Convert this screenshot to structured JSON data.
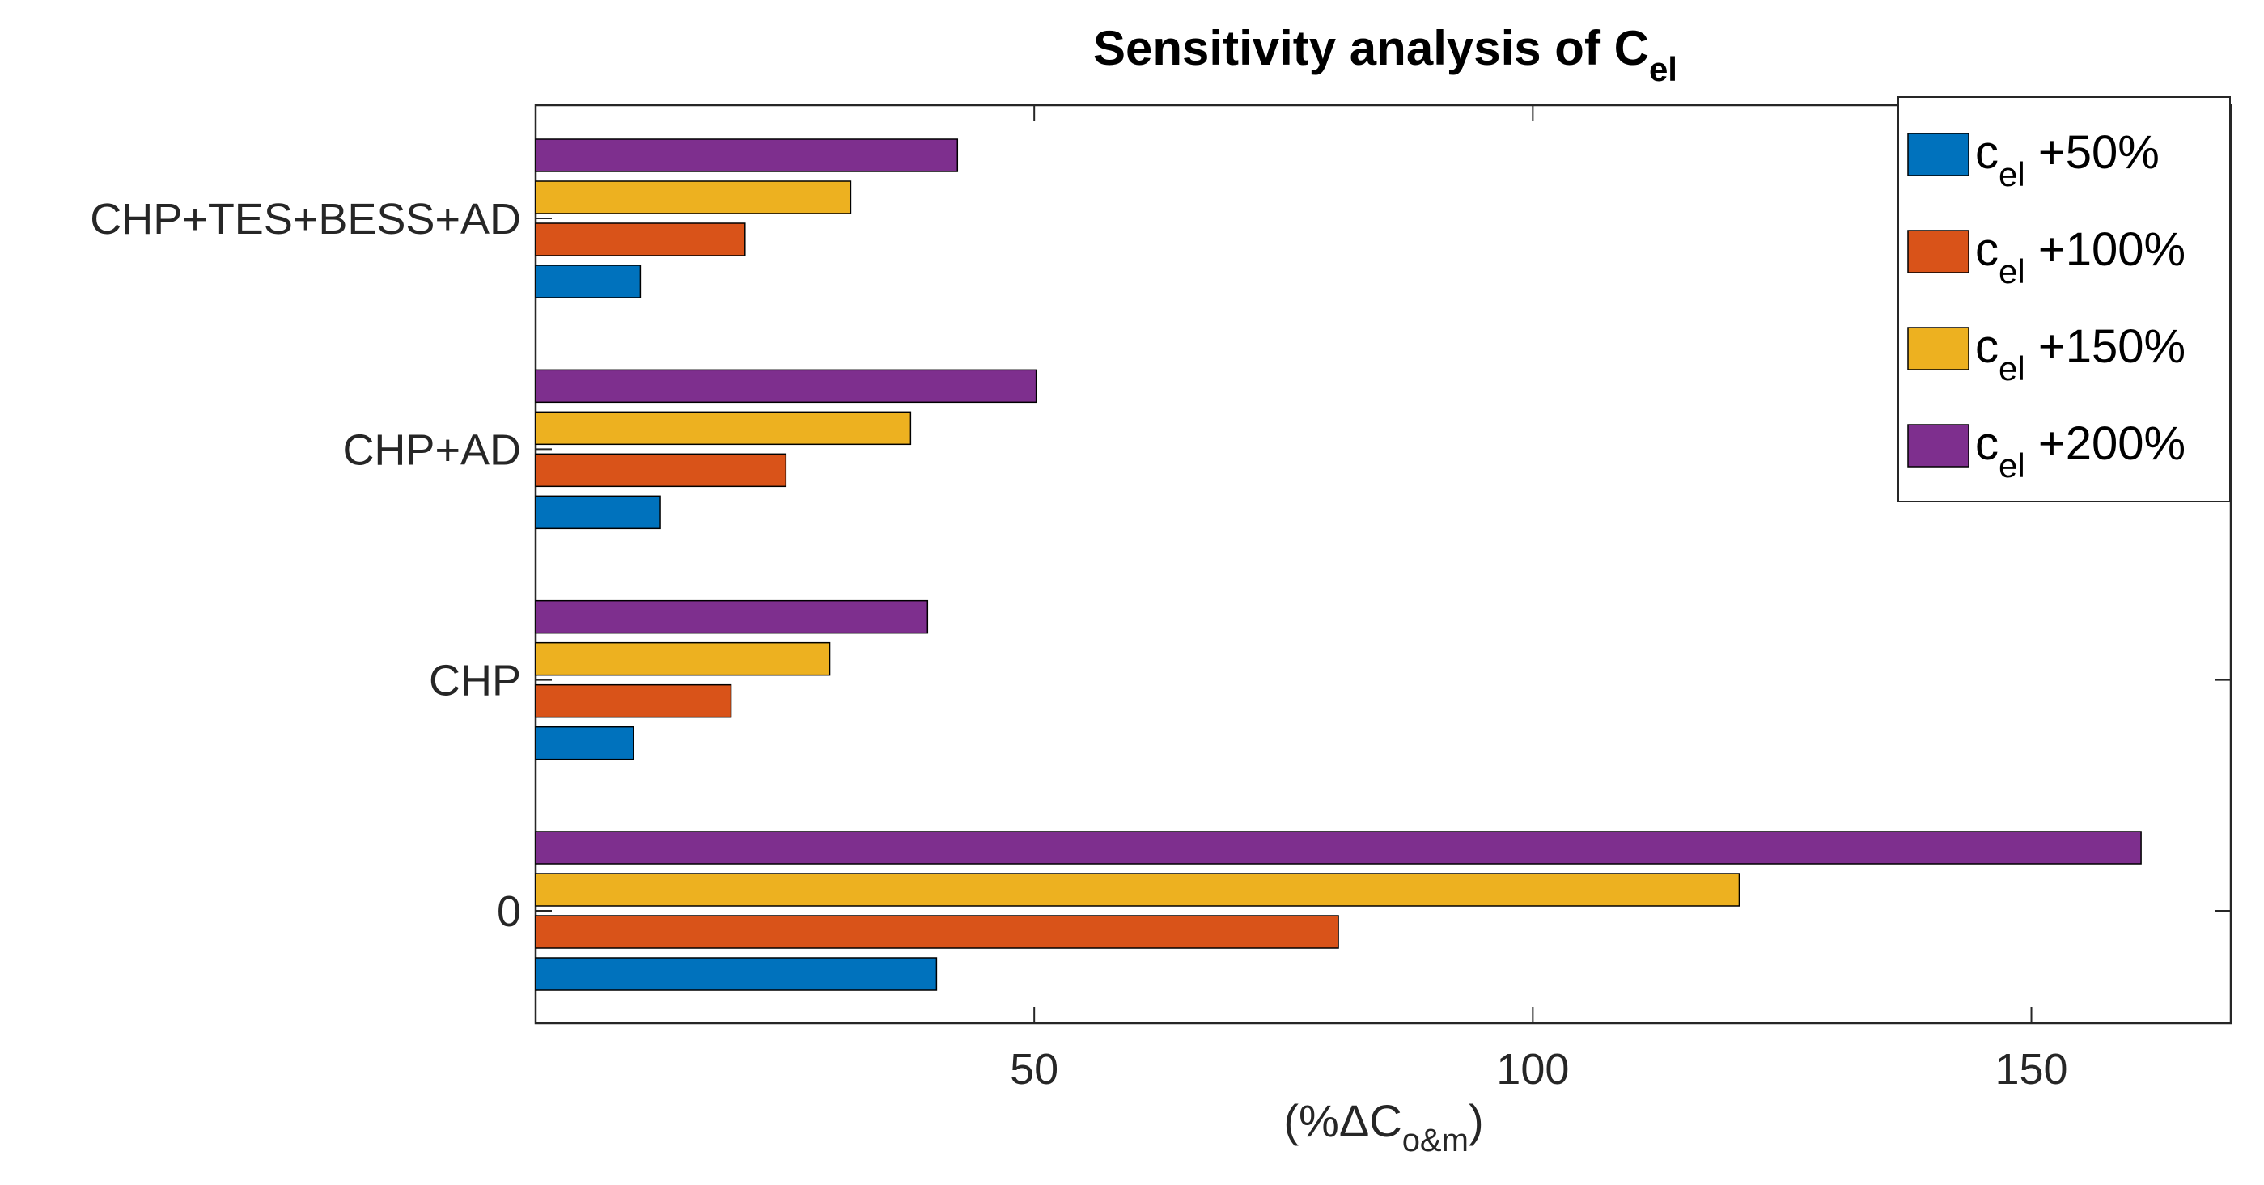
{
  "chart_data": {
    "type": "bar",
    "orientation": "horizontal",
    "title": "Sensitivity analysis of C",
    "title_subscript": "el",
    "xlabel": "(%ΔC",
    "xlabel_subscript": "o&m",
    "xlabel_close": ")",
    "ylabel": "",
    "xlim": [
      0,
      170
    ],
    "xticks": [
      50,
      100,
      150
    ],
    "grid": false,
    "legend_position": "top-right",
    "categories": [
      "0",
      "CHP",
      "CHP+AD",
      "CHP+TES+BESS+AD"
    ],
    "series": [
      {
        "name": "c",
        "name_subscript": "el",
        "name_suffix": " +50%",
        "color": "#0072BD",
        "values": [
          40.2,
          9.8,
          12.5,
          10.5
        ]
      },
      {
        "name": "c",
        "name_subscript": "el",
        "name_suffix": " +100%",
        "color": "#D95319",
        "values": [
          80.5,
          19.6,
          25.1,
          21.0
        ]
      },
      {
        "name": "c",
        "name_subscript": "el",
        "name_suffix": " +150%",
        "color": "#EDB120",
        "values": [
          120.7,
          29.5,
          37.6,
          31.6
        ]
      },
      {
        "name": "c",
        "name_subscript": "el",
        "name_suffix": " +200%",
        "color": "#7E2F8E",
        "values": [
          161.0,
          39.3,
          50.2,
          42.3
        ]
      }
    ]
  }
}
